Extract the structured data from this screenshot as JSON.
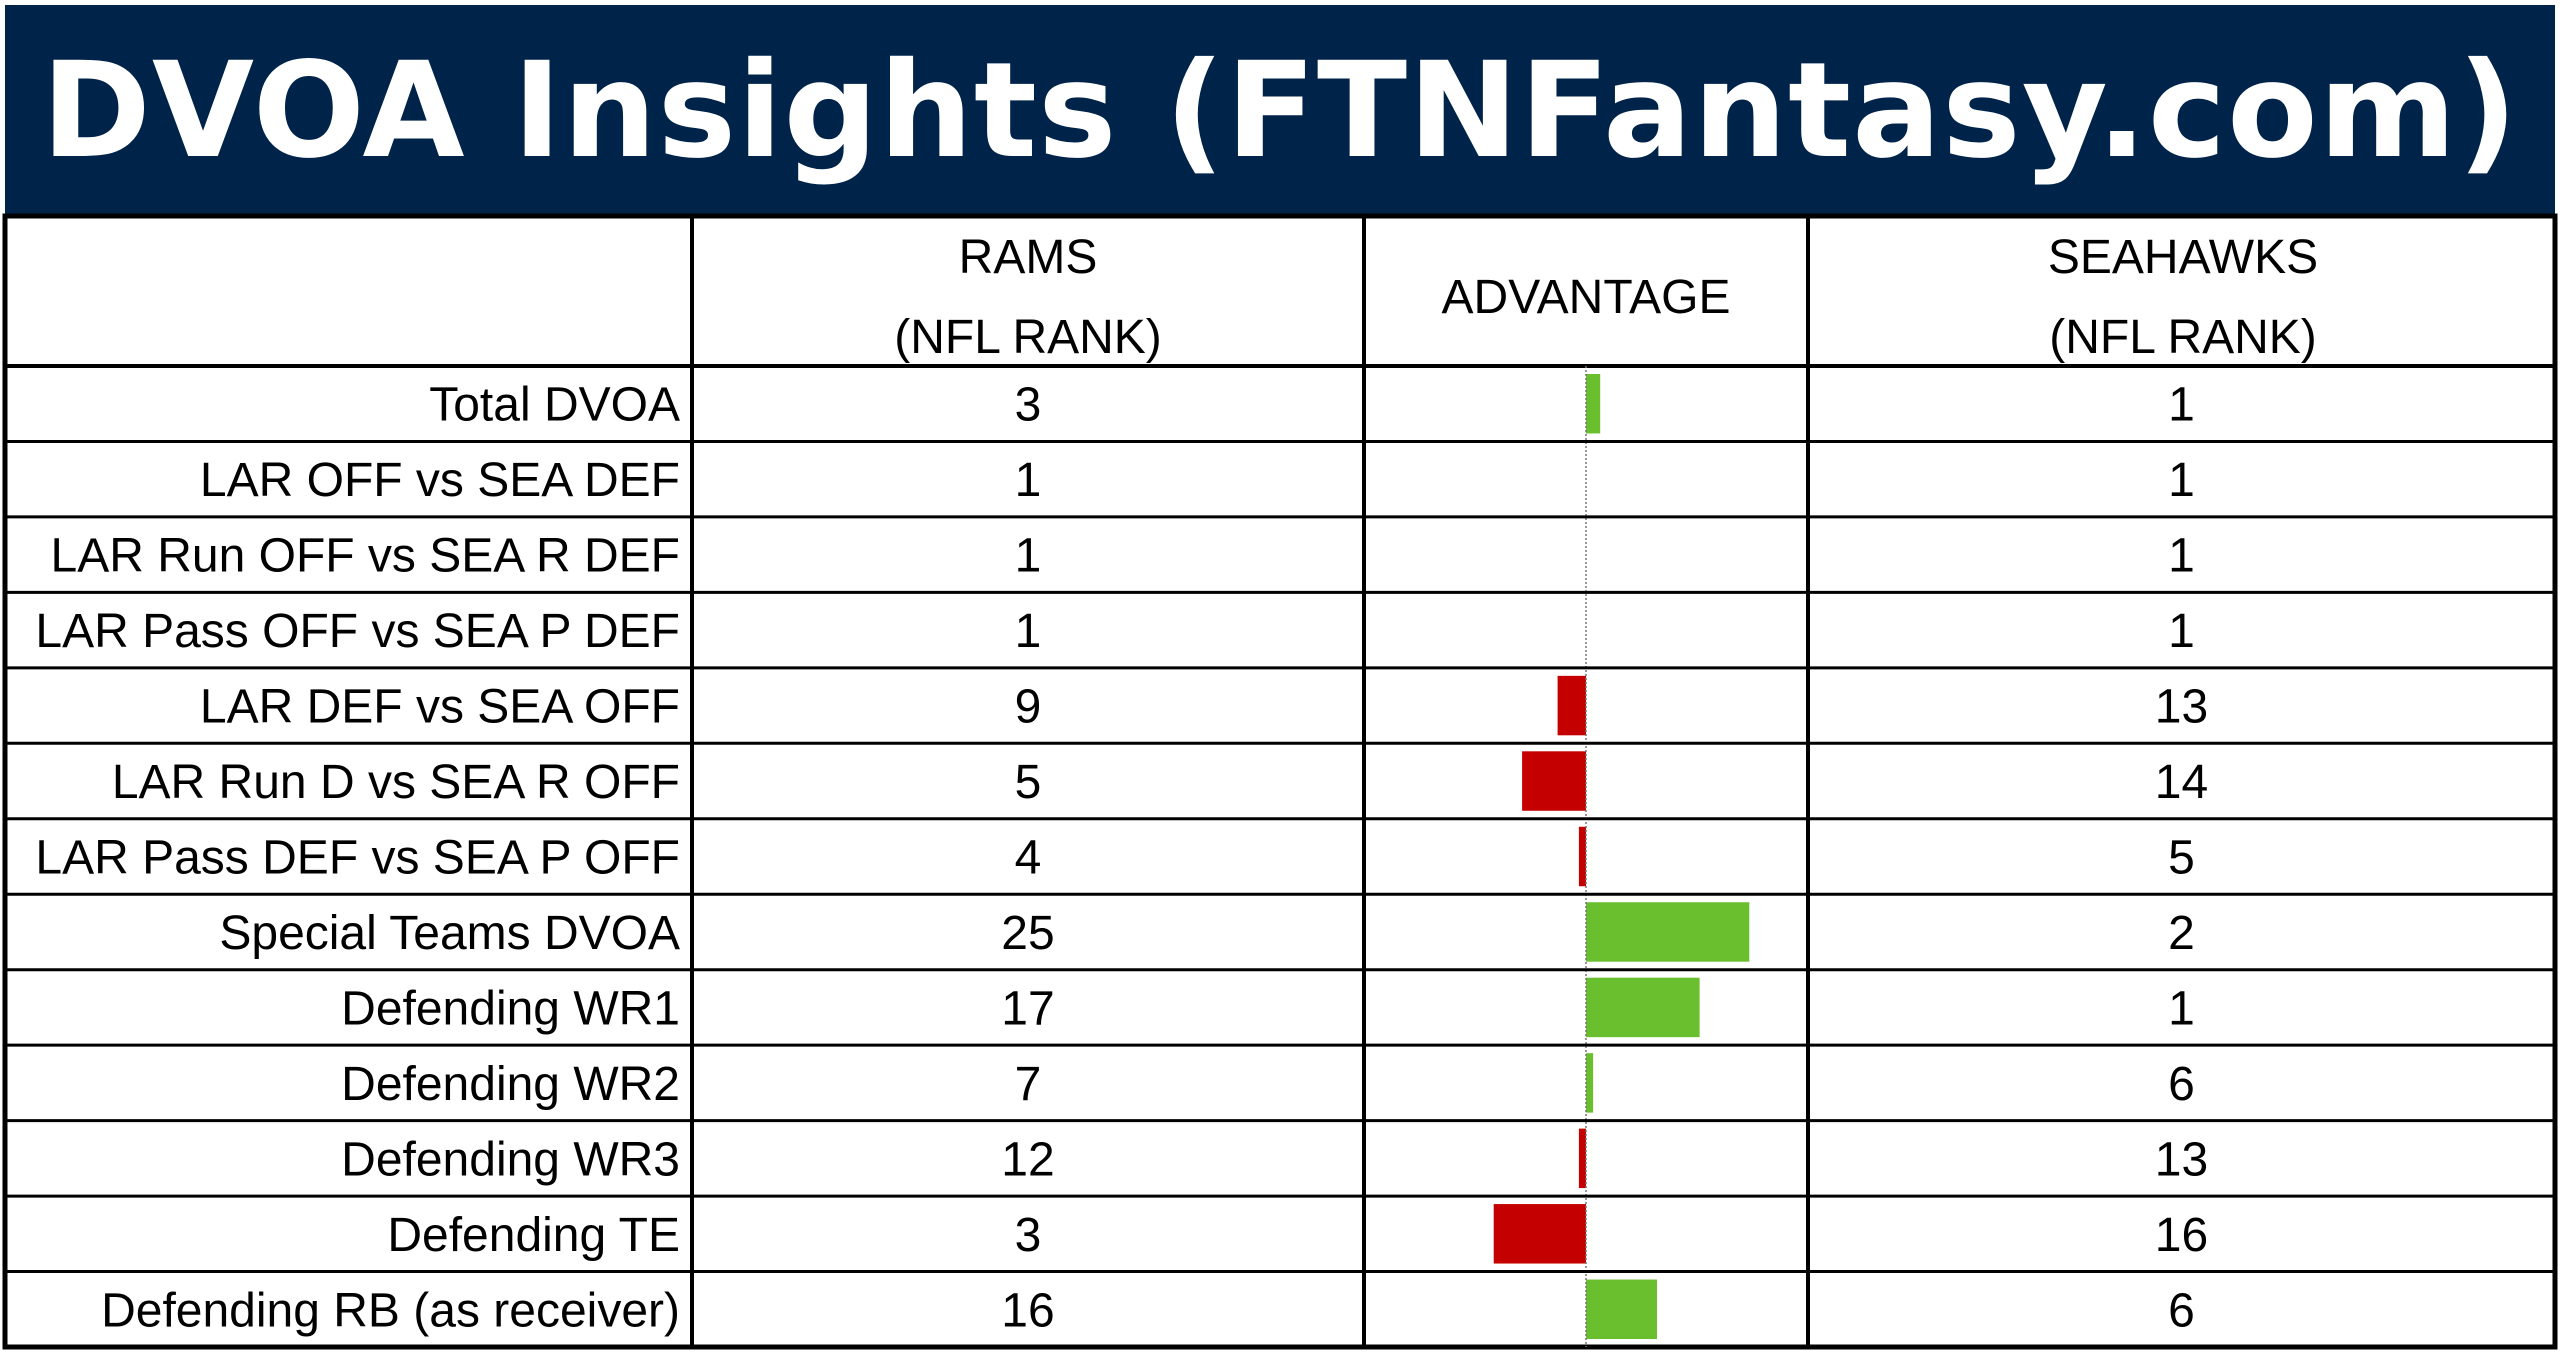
{
  "title": "DVOA Insights (FTNFantasy.com)",
  "headers": {
    "rams": [
      "RAMS",
      "(NFL RANK)"
    ],
    "advantage": "ADVANTAGE",
    "seahawks": [
      "SEAHAWKS",
      "(NFL RANK)"
    ]
  },
  "colors": {
    "title_bg": "#00234a",
    "positive": "#6abf2e",
    "negative": "#c40000"
  },
  "chart_data": {
    "type": "table",
    "columns": [
      "",
      "RAMS (NFL RANK)",
      "ADVANTAGE",
      "SEAHAWKS (NFL RANK)"
    ],
    "advantage_axis": "center zero line; green = positive advantage, red = negative",
    "rows": [
      {
        "label": "Total DVOA",
        "rams": "3",
        "seahawks": "1",
        "advantage": 2
      },
      {
        "label": "LAR OFF vs SEA DEF",
        "rams": "1",
        "seahawks": "1",
        "advantage": 0
      },
      {
        "label": "LAR Run OFF vs SEA R DEF",
        "rams": "1",
        "seahawks": "1",
        "advantage": 0
      },
      {
        "label": "LAR Pass OFF vs SEA P DEF",
        "rams": "1",
        "seahawks": "1",
        "advantage": 0
      },
      {
        "label": "LAR DEF vs SEA OFF",
        "rams": "9",
        "seahawks": "13",
        "advantage": -4
      },
      {
        "label": "LAR Run D vs SEA R OFF",
        "rams": "5",
        "seahawks": "14",
        "advantage": -9
      },
      {
        "label": "LAR Pass DEF vs SEA P OFF",
        "rams": "4",
        "seahawks": "5",
        "advantage": -1
      },
      {
        "label": "Special Teams DVOA",
        "rams": "25",
        "seahawks": "2",
        "advantage": 23
      },
      {
        "label": "Defending WR1",
        "rams": "17",
        "seahawks": "1",
        "advantage": 16
      },
      {
        "label": "Defending WR2",
        "rams": "7",
        "seahawks": "6",
        "advantage": 1
      },
      {
        "label": "Defending WR3",
        "rams": "12",
        "seahawks": "13",
        "advantage": -1
      },
      {
        "label": "Defending TE",
        "rams": "3",
        "seahawks": "16",
        "advantage": -13
      },
      {
        "label": "Defending RB (as receiver)",
        "rams": "16",
        "seahawks": "6",
        "advantage": 10
      }
    ]
  }
}
